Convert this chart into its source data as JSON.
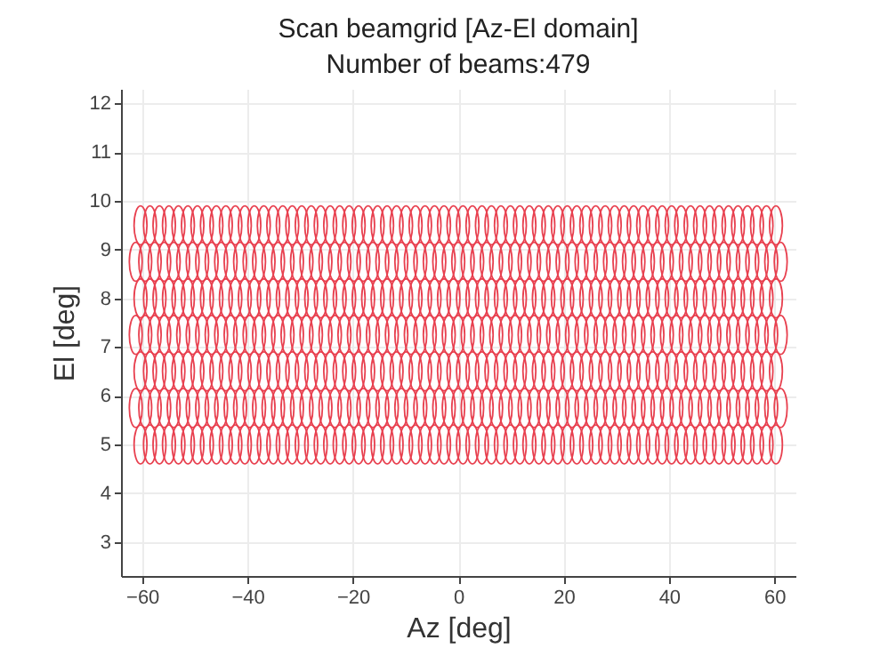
{
  "chart_data": {
    "type": "scatter",
    "title": "Scan beamgrid [Az-El domain]",
    "subtitle": "Number of beams:479",
    "xlabel": "Az [deg]",
    "ylabel": "El [deg]",
    "xlim": [
      -64,
      64
    ],
    "ylim": [
      2.3,
      12.3
    ],
    "xticks": [
      -60,
      -40,
      -20,
      0,
      20,
      40,
      60
    ],
    "yticks": [
      3,
      4,
      5,
      6,
      7,
      8,
      9,
      10,
      11,
      12
    ],
    "grid": true,
    "marker": "circle",
    "series": [
      {
        "color": "#e8404f",
        "x": [
          -60.3,
          -58.5,
          -56.7,
          -54.9,
          -53.1,
          -51.3,
          -49.5,
          -47.7,
          -45.9,
          -44.1,
          -42.3,
          -40.5,
          -38.7,
          -36.9,
          -35.1,
          -33.3,
          -31.5,
          -29.7,
          -27.9,
          -26.1,
          -24.3,
          -22.5,
          -20.7,
          -18.9,
          -17.1,
          -15.3,
          -13.5,
          -11.7,
          -9.9,
          -8.1,
          -6.3,
          -4.5,
          -2.7,
          -0.9,
          0.9,
          2.7,
          4.5,
          6.3,
          8.1,
          9.9,
          11.7,
          13.5,
          15.3,
          17.1,
          18.9,
          20.7,
          22.5,
          24.3,
          26.1,
          27.9,
          29.7,
          31.5,
          33.3,
          35.1,
          36.9,
          38.7,
          40.5,
          42.3,
          44.1,
          45.9,
          47.7,
          49.5,
          51.3,
          53.1,
          54.9,
          56.7,
          58.5,
          60.3
        ],
        "values": [
          9.5,
          9.5,
          9.5,
          9.5,
          9.5,
          9.5,
          9.5,
          9.5,
          9.5,
          9.5,
          9.5,
          9.5,
          9.5,
          9.5,
          9.5,
          9.5,
          9.5,
          9.5,
          9.5,
          9.5,
          9.5,
          9.5,
          9.5,
          9.5,
          9.5,
          9.5,
          9.5,
          9.5,
          9.5,
          9.5,
          9.5,
          9.5,
          9.5,
          9.5,
          9.5,
          9.5,
          9.5,
          9.5,
          9.5,
          9.5,
          9.5,
          9.5,
          9.5,
          9.5,
          9.5,
          9.5,
          9.5,
          9.5,
          9.5,
          9.5,
          9.5,
          9.5,
          9.5,
          9.5,
          9.5,
          9.5,
          9.5,
          9.5,
          9.5,
          9.5,
          9.5,
          9.5,
          9.5,
          9.5,
          9.5,
          9.5,
          9.5,
          9.5
        ]
      },
      {
        "color": "#e8404f",
        "x": [
          -61.2,
          -59.4,
          -57.6,
          -55.8,
          -54,
          -52.2,
          -50.4,
          -48.6,
          -46.8,
          -45,
          -43.2,
          -41.4,
          -39.6,
          -37.8,
          -36,
          -34.2,
          -32.4,
          -30.6,
          -28.8,
          -27,
          -25.2,
          -23.4,
          -21.6,
          -19.8,
          -18,
          -16.2,
          -14.4,
          -12.6,
          -10.8,
          -9,
          -7.2,
          -5.4,
          -3.6,
          -1.8,
          0,
          1.8,
          3.6,
          5.4,
          7.2,
          9,
          10.8,
          12.6,
          14.4,
          16.2,
          18,
          19.8,
          21.6,
          23.4,
          25.2,
          27,
          28.8,
          30.6,
          32.4,
          34.2,
          36,
          37.8,
          39.6,
          41.4,
          43.2,
          45,
          46.8,
          48.6,
          50.4,
          52.2,
          54,
          55.8,
          57.6,
          59.4,
          61.2
        ],
        "values": [
          8.75,
          8.75,
          8.75,
          8.75,
          8.75,
          8.75,
          8.75,
          8.75,
          8.75,
          8.75,
          8.75,
          8.75,
          8.75,
          8.75,
          8.75,
          8.75,
          8.75,
          8.75,
          8.75,
          8.75,
          8.75,
          8.75,
          8.75,
          8.75,
          8.75,
          8.75,
          8.75,
          8.75,
          8.75,
          8.75,
          8.75,
          8.75,
          8.75,
          8.75,
          8.75,
          8.75,
          8.75,
          8.75,
          8.75,
          8.75,
          8.75,
          8.75,
          8.75,
          8.75,
          8.75,
          8.75,
          8.75,
          8.75,
          8.75,
          8.75,
          8.75,
          8.75,
          8.75,
          8.75,
          8.75,
          8.75,
          8.75,
          8.75,
          8.75,
          8.75,
          8.75,
          8.75,
          8.75,
          8.75,
          8.75,
          8.75,
          8.75,
          8.75,
          8.75
        ]
      },
      {
        "color": "#e8404f",
        "x": [
          -60.3,
          -58.5,
          -56.7,
          -54.9,
          -53.1,
          -51.3,
          -49.5,
          -47.7,
          -45.9,
          -44.1,
          -42.3,
          -40.5,
          -38.7,
          -36.9,
          -35.1,
          -33.3,
          -31.5,
          -29.7,
          -27.9,
          -26.1,
          -24.3,
          -22.5,
          -20.7,
          -18.9,
          -17.1,
          -15.3,
          -13.5,
          -11.7,
          -9.9,
          -8.1,
          -6.3,
          -4.5,
          -2.7,
          -0.9,
          0.9,
          2.7,
          4.5,
          6.3,
          8.1,
          9.9,
          11.7,
          13.5,
          15.3,
          17.1,
          18.9,
          20.7,
          22.5,
          24.3,
          26.1,
          27.9,
          29.7,
          31.5,
          33.3,
          35.1,
          36.9,
          38.7,
          40.5,
          42.3,
          44.1,
          45.9,
          47.7,
          49.5,
          51.3,
          53.1,
          54.9,
          56.7,
          58.5,
          60.3
        ],
        "values": [
          8,
          8,
          8,
          8,
          8,
          8,
          8,
          8,
          8,
          8,
          8,
          8,
          8,
          8,
          8,
          8,
          8,
          8,
          8,
          8,
          8,
          8,
          8,
          8,
          8,
          8,
          8,
          8,
          8,
          8,
          8,
          8,
          8,
          8,
          8,
          8,
          8,
          8,
          8,
          8,
          8,
          8,
          8,
          8,
          8,
          8,
          8,
          8,
          8,
          8,
          8,
          8,
          8,
          8,
          8,
          8,
          8,
          8,
          8,
          8,
          8,
          8,
          8,
          8,
          8,
          8,
          8,
          8
        ]
      },
      {
        "color": "#e8404f",
        "x": [
          -61.2,
          -59.4,
          -57.6,
          -55.8,
          -54,
          -52.2,
          -50.4,
          -48.6,
          -46.8,
          -45,
          -43.2,
          -41.4,
          -39.6,
          -37.8,
          -36,
          -34.2,
          -32.4,
          -30.6,
          -28.8,
          -27,
          -25.2,
          -23.4,
          -21.6,
          -19.8,
          -18,
          -16.2,
          -14.4,
          -12.6,
          -10.8,
          -9,
          -7.2,
          -5.4,
          -3.6,
          -1.8,
          0,
          1.8,
          3.6,
          5.4,
          7.2,
          9,
          10.8,
          12.6,
          14.4,
          16.2,
          18,
          19.8,
          21.6,
          23.4,
          25.2,
          27,
          28.8,
          30.6,
          32.4,
          34.2,
          36,
          37.8,
          39.6,
          41.4,
          43.2,
          45,
          46.8,
          48.6,
          50.4,
          52.2,
          54,
          55.8,
          57.6,
          59.4,
          61.2
        ],
        "values": [
          7.25,
          7.25,
          7.25,
          7.25,
          7.25,
          7.25,
          7.25,
          7.25,
          7.25,
          7.25,
          7.25,
          7.25,
          7.25,
          7.25,
          7.25,
          7.25,
          7.25,
          7.25,
          7.25,
          7.25,
          7.25,
          7.25,
          7.25,
          7.25,
          7.25,
          7.25,
          7.25,
          7.25,
          7.25,
          7.25,
          7.25,
          7.25,
          7.25,
          7.25,
          7.25,
          7.25,
          7.25,
          7.25,
          7.25,
          7.25,
          7.25,
          7.25,
          7.25,
          7.25,
          7.25,
          7.25,
          7.25,
          7.25,
          7.25,
          7.25,
          7.25,
          7.25,
          7.25,
          7.25,
          7.25,
          7.25,
          7.25,
          7.25,
          7.25,
          7.25,
          7.25,
          7.25,
          7.25,
          7.25,
          7.25,
          7.25,
          7.25,
          7.25,
          7.25
        ]
      },
      {
        "color": "#e8404f",
        "x": [
          -60.3,
          -58.5,
          -56.7,
          -54.9,
          -53.1,
          -51.3,
          -49.5,
          -47.7,
          -45.9,
          -44.1,
          -42.3,
          -40.5,
          -38.7,
          -36.9,
          -35.1,
          -33.3,
          -31.5,
          -29.7,
          -27.9,
          -26.1,
          -24.3,
          -22.5,
          -20.7,
          -18.9,
          -17.1,
          -15.3,
          -13.5,
          -11.7,
          -9.9,
          -8.1,
          -6.3,
          -4.5,
          -2.7,
          -0.9,
          0.9,
          2.7,
          4.5,
          6.3,
          8.1,
          9.9,
          11.7,
          13.5,
          15.3,
          17.1,
          18.9,
          20.7,
          22.5,
          24.3,
          26.1,
          27.9,
          29.7,
          31.5,
          33.3,
          35.1,
          36.9,
          38.7,
          40.5,
          42.3,
          44.1,
          45.9,
          47.7,
          49.5,
          51.3,
          53.1,
          54.9,
          56.7,
          58.5,
          60.3
        ],
        "values": [
          6.5,
          6.5,
          6.5,
          6.5,
          6.5,
          6.5,
          6.5,
          6.5,
          6.5,
          6.5,
          6.5,
          6.5,
          6.5,
          6.5,
          6.5,
          6.5,
          6.5,
          6.5,
          6.5,
          6.5,
          6.5,
          6.5,
          6.5,
          6.5,
          6.5,
          6.5,
          6.5,
          6.5,
          6.5,
          6.5,
          6.5,
          6.5,
          6.5,
          6.5,
          6.5,
          6.5,
          6.5,
          6.5,
          6.5,
          6.5,
          6.5,
          6.5,
          6.5,
          6.5,
          6.5,
          6.5,
          6.5,
          6.5,
          6.5,
          6.5,
          6.5,
          6.5,
          6.5,
          6.5,
          6.5,
          6.5,
          6.5,
          6.5,
          6.5,
          6.5,
          6.5,
          6.5,
          6.5,
          6.5,
          6.5,
          6.5,
          6.5,
          6.5
        ]
      },
      {
        "color": "#e8404f",
        "x": [
          -61.2,
          -59.4,
          -57.6,
          -55.8,
          -54,
          -52.2,
          -50.4,
          -48.6,
          -46.8,
          -45,
          -43.2,
          -41.4,
          -39.6,
          -37.8,
          -36,
          -34.2,
          -32.4,
          -30.6,
          -28.8,
          -27,
          -25.2,
          -23.4,
          -21.6,
          -19.8,
          -18,
          -16.2,
          -14.4,
          -12.6,
          -10.8,
          -9,
          -7.2,
          -5.4,
          -3.6,
          -1.8,
          0,
          1.8,
          3.6,
          5.4,
          7.2,
          9,
          10.8,
          12.6,
          14.4,
          16.2,
          18,
          19.8,
          21.6,
          23.4,
          25.2,
          27,
          28.8,
          30.6,
          32.4,
          34.2,
          36,
          37.8,
          39.6,
          41.4,
          43.2,
          45,
          46.8,
          48.6,
          50.4,
          52.2,
          54,
          55.8,
          57.6,
          59.4,
          61.2
        ],
        "values": [
          5.75,
          5.75,
          5.75,
          5.75,
          5.75,
          5.75,
          5.75,
          5.75,
          5.75,
          5.75,
          5.75,
          5.75,
          5.75,
          5.75,
          5.75,
          5.75,
          5.75,
          5.75,
          5.75,
          5.75,
          5.75,
          5.75,
          5.75,
          5.75,
          5.75,
          5.75,
          5.75,
          5.75,
          5.75,
          5.75,
          5.75,
          5.75,
          5.75,
          5.75,
          5.75,
          5.75,
          5.75,
          5.75,
          5.75,
          5.75,
          5.75,
          5.75,
          5.75,
          5.75,
          5.75,
          5.75,
          5.75,
          5.75,
          5.75,
          5.75,
          5.75,
          5.75,
          5.75,
          5.75,
          5.75,
          5.75,
          5.75,
          5.75,
          5.75,
          5.75,
          5.75,
          5.75,
          5.75,
          5.75,
          5.75,
          5.75,
          5.75,
          5.75,
          5.75
        ]
      },
      {
        "color": "#e8404f",
        "x": [
          -60.3,
          -58.5,
          -56.7,
          -54.9,
          -53.1,
          -51.3,
          -49.5,
          -47.7,
          -45.9,
          -44.1,
          -42.3,
          -40.5,
          -38.7,
          -36.9,
          -35.1,
          -33.3,
          -31.5,
          -29.7,
          -27.9,
          -26.1,
          -24.3,
          -22.5,
          -20.7,
          -18.9,
          -17.1,
          -15.3,
          -13.5,
          -11.7,
          -9.9,
          -8.1,
          -6.3,
          -4.5,
          -2.7,
          -0.9,
          0.9,
          2.7,
          4.5,
          6.3,
          8.1,
          9.9,
          11.7,
          13.5,
          15.3,
          17.1,
          18.9,
          20.7,
          22.5,
          24.3,
          26.1,
          27.9,
          29.7,
          31.5,
          33.3,
          35.1,
          36.9,
          38.7,
          40.5,
          42.3,
          44.1,
          45.9,
          47.7,
          49.5,
          51.3,
          53.1,
          54.9,
          56.7,
          58.5,
          60.3
        ],
        "values": [
          5,
          5,
          5,
          5,
          5,
          5,
          5,
          5,
          5,
          5,
          5,
          5,
          5,
          5,
          5,
          5,
          5,
          5,
          5,
          5,
          5,
          5,
          5,
          5,
          5,
          5,
          5,
          5,
          5,
          5,
          5,
          5,
          5,
          5,
          5,
          5,
          5,
          5,
          5,
          5,
          5,
          5,
          5,
          5,
          5,
          5,
          5,
          5,
          5,
          5,
          5,
          5,
          5,
          5,
          5,
          5,
          5,
          5,
          5,
          5,
          5,
          5,
          5,
          5,
          5,
          5,
          5,
          5
        ]
      }
    ]
  }
}
